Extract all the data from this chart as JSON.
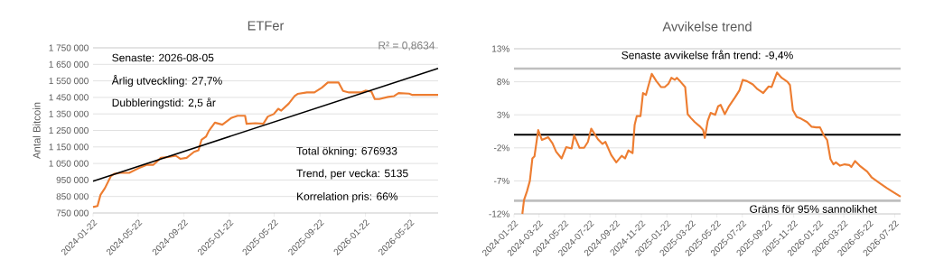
{
  "chart_data": [
    {
      "type": "line",
      "title": "ETFer",
      "ylabel": "Antal Bitcoin",
      "xlim": [
        "2024-01-22",
        "2026-08-05"
      ],
      "xticks": [
        "2024-01-22",
        "2024-05-22",
        "2024-09-22",
        "2025-01-22",
        "2025-05-22",
        "2025-09-22",
        "2026-01-22",
        "2026-05-22"
      ],
      "ylim": [
        750000,
        1750000
      ],
      "yticks": [
        {
          "value": 750000,
          "label": "750 000"
        },
        {
          "value": 850000,
          "label": "850 000"
        },
        {
          "value": 950000,
          "label": "950 000"
        },
        {
          "value": 1050000,
          "label": "1 050 000"
        },
        {
          "value": 1150000,
          "label": "1 150 000"
        },
        {
          "value": 1250000,
          "label": "1 250 000"
        },
        {
          "value": 1350000,
          "label": "1 350 000"
        },
        {
          "value": 1450000,
          "label": "1 450 000"
        },
        {
          "value": 1550000,
          "label": "1 550 000"
        },
        {
          "value": 1650000,
          "label": "1 650 000"
        },
        {
          "value": 1750000,
          "label": "1 750 000"
        }
      ],
      "grid": "y",
      "x": [
        "2024-01-22",
        "2024-02-03",
        "2024-02-11",
        "2024-02-23",
        "2024-03-10",
        "2024-03-19",
        "2024-04-04",
        "2024-04-28",
        "2024-05-22",
        "2024-06-15",
        "2024-07-02",
        "2024-07-22",
        "2024-08-11",
        "2024-08-31",
        "2024-09-12",
        "2024-09-29",
        "2024-10-19",
        "2024-10-31",
        "2024-11-08",
        "2024-11-20",
        "2024-11-28",
        "2024-12-14",
        "2025-01-03",
        "2025-01-28",
        "2025-02-13",
        "2025-03-05",
        "2025-03-09",
        "2025-04-02",
        "2025-04-23",
        "2025-05-05",
        "2025-05-21",
        "2025-06-02",
        "2025-06-10",
        "2025-06-30",
        "2025-07-16",
        "2025-07-24",
        "2025-08-18",
        "2025-09-07",
        "2025-09-27",
        "2025-10-13",
        "2025-11-11",
        "2025-11-23",
        "2025-12-09",
        "2026-01-10",
        "2026-01-22",
        "2026-02-07",
        "2026-02-16",
        "2026-02-28",
        "2026-03-24",
        "2026-04-09",
        "2026-04-21",
        "2026-05-19",
        "2026-05-28",
        "2026-08-05"
      ],
      "series": [
        {
          "color": "#ed7d31",
          "values": [
            786000,
            792000,
            860000,
            901000,
            974000,
            987000,
            993000,
            993000,
            1020000,
            1042000,
            1042000,
            1084000,
            1089000,
            1097000,
            1078000,
            1084000,
            1120000,
            1130000,
            1193000,
            1212000,
            1248000,
            1297000,
            1285000,
            1327000,
            1339000,
            1339000,
            1290000,
            1294000,
            1290000,
            1334000,
            1349000,
            1381000,
            1370000,
            1412000,
            1458000,
            1471000,
            1480000,
            1480000,
            1509000,
            1540000,
            1540000,
            1489000,
            1480000,
            1480000,
            1491000,
            1485000,
            1440000,
            1440000,
            1453000,
            1458000,
            1476000,
            1473000,
            1465000,
            1465000
          ]
        },
        {
          "type": "line",
          "color": "#000000",
          "x": [
            "2024-01-22",
            "2026-08-05"
          ],
          "values": [
            943000,
            1626000
          ]
        }
      ],
      "annotations": [
        "Senaste: 2026-08-05",
        "Årlig utveckling: 27,7%",
        "Dubbleringstid: 2,5 år",
        "R² = 0,8634",
        "Total ökning: 676933",
        "Trend, per vecka: 5135",
        "Korrelation pris: 66%"
      ]
    },
    {
      "type": "line",
      "title": "Avvikelse trend",
      "xlim": [
        "2024-01-22",
        "2026-08-05"
      ],
      "xticks": [
        "2024-01-22",
        "2024-03-22",
        "2024-05-22",
        "2024-07-22",
        "2024-09-22",
        "2024-11-22",
        "2025-01-22",
        "2025-03-22",
        "2025-05-22",
        "2025-07-22",
        "2025-09-22",
        "2025-11-22",
        "2026-01-22",
        "2026-03-22",
        "2026-05-22",
        "2026-07-22"
      ],
      "ylim": [
        -12,
        13
      ],
      "yticks": [
        {
          "value": -12,
          "label": "-12%"
        },
        {
          "value": -7,
          "label": "-7%"
        },
        {
          "value": -2,
          "label": "-2%"
        },
        {
          "value": 3,
          "label": "3%"
        },
        {
          "value": 8,
          "label": "8%"
        },
        {
          "value": 13,
          "label": "13%"
        }
      ],
      "grid": "y",
      "x": [
        "2024-02-11",
        "2024-02-15",
        "2024-02-22",
        "2024-02-29",
        "2024-03-06",
        "2024-03-11",
        "2024-03-20",
        "2024-03-29",
        "2024-04-13",
        "2024-04-23",
        "2024-05-02",
        "2024-05-15",
        "2024-05-26",
        "2024-06-08",
        "2024-06-14",
        "2024-06-27",
        "2024-07-08",
        "2024-07-17",
        "2024-07-25",
        "2024-08-02",
        "2024-08-10",
        "2024-08-21",
        "2024-08-28",
        "2024-09-11",
        "2024-09-23",
        "2024-10-06",
        "2024-10-14",
        "2024-10-22",
        "2024-11-01",
        "2024-11-06",
        "2024-11-11",
        "2024-11-20",
        "2024-11-26",
        "2024-12-03",
        "2024-12-09",
        "2024-12-17",
        "2024-12-28",
        "2025-01-08",
        "2025-01-17",
        "2025-01-26",
        "2025-02-02",
        "2025-02-10",
        "2025-02-15",
        "2025-02-24",
        "2025-03-07",
        "2025-03-13",
        "2025-03-21",
        "2025-03-30",
        "2025-04-12",
        "2025-04-19",
        "2025-04-23",
        "2025-04-30",
        "2025-05-07",
        "2025-05-18",
        "2025-05-25",
        "2025-05-31",
        "2025-06-10",
        "2025-06-19",
        "2025-07-04",
        "2025-07-15",
        "2025-07-23",
        "2025-08-02",
        "2025-08-16",
        "2025-08-27",
        "2025-09-10",
        "2025-09-23",
        "2025-09-30",
        "2025-10-13",
        "2025-10-24",
        "2025-11-07",
        "2025-11-13",
        "2025-11-20",
        "2025-11-29",
        "2025-12-10",
        "2025-12-24",
        "2026-01-04",
        "2026-01-15",
        "2026-01-24",
        "2026-02-02",
        "2026-02-10",
        "2026-02-18",
        "2026-02-25",
        "2026-03-03",
        "2026-03-13",
        "2026-03-24",
        "2026-04-04",
        "2026-04-09",
        "2026-04-18",
        "2026-04-29",
        "2026-05-17",
        "2026-05-28",
        "2026-06-15",
        "2026-07-03",
        "2026-07-21",
        "2026-08-05"
      ],
      "series": [
        {
          "color": "#ed7d31",
          "values": [
            -12,
            -9.9,
            -8.6,
            -7.0,
            -3.6,
            -3.3,
            0.7,
            -0.8,
            -0.4,
            -1.3,
            -2.6,
            -3.6,
            -1.9,
            -2.1,
            -0.1,
            -2.0,
            -2.0,
            -1.1,
            0.9,
            0.1,
            -0.7,
            -1.4,
            -1.1,
            -3.1,
            -4.2,
            -3.2,
            -3.6,
            -2.4,
            -2.8,
            1.5,
            2.8,
            2.8,
            6.3,
            6.0,
            7.4,
            9.2,
            8.1,
            7.2,
            7.2,
            7.7,
            8.6,
            8.3,
            8.6,
            8.0,
            7.2,
            3.1,
            2.5,
            1.9,
            1.2,
            0.7,
            -0.5,
            2.1,
            3.3,
            3.0,
            4.3,
            4.5,
            3.1,
            4.2,
            5.6,
            6.7,
            8.3,
            8.1,
            7.6,
            6.9,
            6.3,
            7.3,
            7.2,
            9.4,
            8.6,
            8.0,
            7.5,
            3.7,
            2.7,
            2.4,
            1.9,
            1.2,
            1.1,
            1.1,
            -0.1,
            -0.8,
            -3.7,
            -4.5,
            -4.2,
            -4.7,
            -4.5,
            -4.6,
            -4.9,
            -4.0,
            -4.7,
            -5.6,
            -6.5,
            -7.3,
            -8.1,
            -8.8,
            -9.4
          ]
        }
      ],
      "ref_lines": [
        {
          "axis": "y",
          "value": 0,
          "color": "#000000"
        },
        {
          "axis": "y",
          "value": 10,
          "color": "#bfbfbf"
        },
        {
          "axis": "y",
          "value": -10,
          "color": "#bfbfbf",
          "label": "Gräns för 95% sannolikhet"
        }
      ],
      "annotations": [
        "Senaste avvikelse från trend: -9,4%"
      ]
    }
  ]
}
